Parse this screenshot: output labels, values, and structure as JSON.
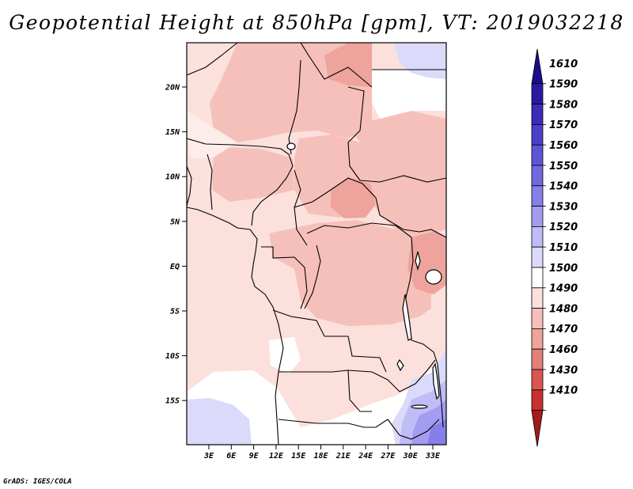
{
  "title": "Geopotential Height at 850hPa [gpm], VT: 2019032218",
  "footer": "GrADS: IGES/COLA",
  "map": {
    "variable": "Geopotential Height at 850hPa",
    "units": "gpm",
    "valid_time": "2019032218",
    "lat_labels": [
      "20N",
      "15N",
      "10N",
      "5N",
      "EQ",
      "5S",
      "10S",
      "15S"
    ],
    "lon_labels": [
      "3E",
      "6E",
      "9E",
      "12E",
      "15E",
      "18E",
      "21E",
      "24E",
      "27E",
      "30E",
      "33E"
    ]
  },
  "colorbar": {
    "levels": [
      "1610",
      "1590",
      "1580",
      "1570",
      "1560",
      "1550",
      "1540",
      "1530",
      "1520",
      "1510",
      "1500",
      "1490",
      "1480",
      "1470",
      "1460",
      "1430",
      "1410"
    ],
    "colors": [
      "#1a0c8c",
      "#2a1aa2",
      "#3a2cb8",
      "#4c40c8",
      "#5e54d6",
      "#7268e0",
      "#877fe8",
      "#a39cf0",
      "#c0bcf6",
      "#dcdafb",
      "#ffffff",
      "#fbe0dc",
      "#f6c0ba",
      "#eea39c",
      "#e4807a",
      "#d9574f",
      "#c83030",
      "#a51a1a"
    ]
  }
}
